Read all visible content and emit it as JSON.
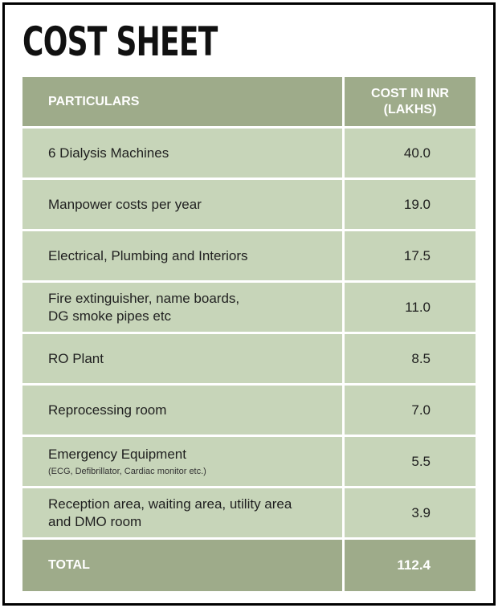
{
  "title": "COST SHEET",
  "table": {
    "header": {
      "particulars": "PARTICULARS",
      "cost_line1": "COST IN INR",
      "cost_line2": "(LAKHS)"
    },
    "rows": [
      {
        "item_line1": "6 Dialysis Machines",
        "item_line2": "",
        "note": "",
        "cost": "40.0"
      },
      {
        "item_line1": "Manpower costs per year",
        "item_line2": "",
        "note": "",
        "cost": "19.0"
      },
      {
        "item_line1": "Electrical, Plumbing and Interiors",
        "item_line2": "",
        "note": "",
        "cost": "17.5"
      },
      {
        "item_line1": "Fire extinguisher, name boards,",
        "item_line2": "DG smoke pipes etc",
        "note": "",
        "cost": "11.0"
      },
      {
        "item_line1": "RO Plant",
        "item_line2": "",
        "note": "",
        "cost": "8.5"
      },
      {
        "item_line1": "Reprocessing room",
        "item_line2": "",
        "note": "",
        "cost": "7.0"
      },
      {
        "item_line1": "Emergency Equipment",
        "item_line2": "",
        "note": "(ECG, Defibrillator, Cardiac monitor etc.)",
        "cost": "5.5"
      },
      {
        "item_line1": "Reception area, waiting area, utility area",
        "item_line2": "and DMO room",
        "note": "",
        "cost": "3.9"
      }
    ],
    "total": {
      "label": "TOTAL",
      "value": "112.4"
    }
  },
  "colors": {
    "header_bg": "#9eab8a",
    "row_bg": "#c7d5b9",
    "border": "#000000"
  }
}
